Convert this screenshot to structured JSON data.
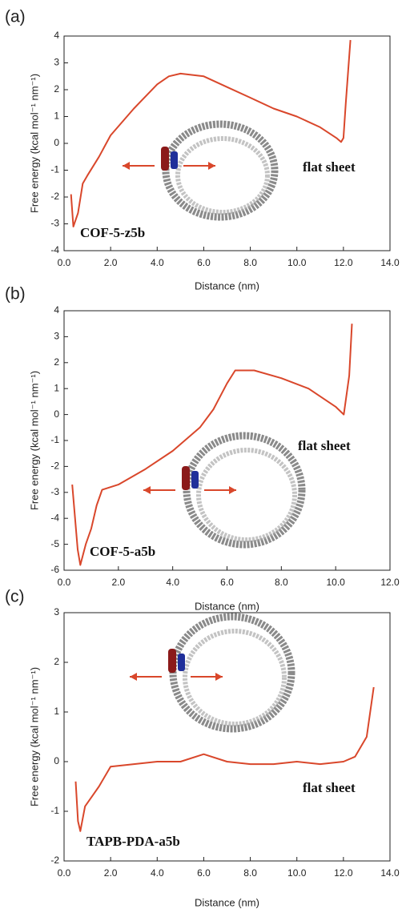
{
  "chart_data": [
    {
      "type": "line",
      "panel_label": "(a)",
      "xlabel": "Distance (nm)",
      "ylabel": "Free energy (kcal mol⁻¹ nm⁻¹)",
      "annotations": [
        "COF-5-z5b",
        "flat sheet"
      ],
      "color": "#d9472b",
      "x": [
        0.3,
        0.4,
        0.6,
        0.8,
        1.0,
        1.5,
        2.0,
        3.0,
        4.0,
        4.5,
        5.0,
        6.0,
        7.0,
        8.0,
        9.0,
        10.0,
        11.0,
        11.7,
        11.9,
        12.0,
        12.1,
        12.3
      ],
      "values": [
        -1.9,
        -3.1,
        -2.6,
        -1.5,
        -1.2,
        -0.5,
        0.3,
        1.3,
        2.2,
        2.5,
        2.6,
        2.5,
        2.1,
        1.7,
        1.3,
        1.0,
        0.6,
        0.2,
        0.05,
        0.2,
        1.5,
        3.85
      ],
      "xlim": [
        0,
        14
      ],
      "ylim": [
        -4,
        4
      ],
      "xticks": [
        {
          "value": 0,
          "label": "0.0"
        },
        {
          "value": 2,
          "label": "2.0"
        },
        {
          "value": 4,
          "label": "4.0"
        },
        {
          "value": 6,
          "label": "6.0"
        },
        {
          "value": 8,
          "label": "8.0"
        },
        {
          "value": 10,
          "label": "10.0"
        },
        {
          "value": 12,
          "label": "12.0"
        },
        {
          "value": 14,
          "label": "14.0"
        }
      ],
      "yticks": [
        -4,
        -3,
        -2,
        -1,
        0,
        1,
        2,
        3,
        4
      ],
      "grid": false
    },
    {
      "type": "line",
      "panel_label": "(b)",
      "xlabel": "Distance (nm)",
      "ylabel": "Free energy (kcal mol⁻¹ nm⁻¹)",
      "annotations": [
        "COF-5-a5b",
        "flat sheet"
      ],
      "color": "#d9472b",
      "x": [
        0.3,
        0.5,
        0.6,
        0.8,
        1.0,
        1.2,
        1.4,
        2.0,
        3.0,
        4.0,
        5.0,
        5.5,
        6.0,
        6.3,
        7.0,
        8.0,
        9.0,
        10.0,
        10.3,
        10.5,
        10.6
      ],
      "values": [
        -2.7,
        -5.2,
        -5.8,
        -5.0,
        -4.4,
        -3.5,
        -2.9,
        -2.7,
        -2.1,
        -1.4,
        -0.5,
        0.2,
        1.2,
        1.7,
        1.7,
        1.4,
        1.0,
        0.3,
        0.0,
        1.5,
        3.5
      ],
      "xlim": [
        0,
        12
      ],
      "ylim": [
        -6,
        4
      ],
      "xticks": [
        {
          "value": 0,
          "label": "0.0"
        },
        {
          "value": 2,
          "label": "2.0"
        },
        {
          "value": 4,
          "label": "4.0"
        },
        {
          "value": 6,
          "label": "6.0"
        },
        {
          "value": 8,
          "label": "8.0"
        },
        {
          "value": 10,
          "label": "10.0"
        },
        {
          "value": 12,
          "label": "12.0"
        }
      ],
      "yticks": [
        -6,
        -5,
        -4,
        -3,
        -2,
        -1,
        0,
        1,
        2,
        3,
        4
      ],
      "grid": false
    },
    {
      "type": "line",
      "panel_label": "(c)",
      "xlabel": "Distance (nm)",
      "ylabel": "Free energy (kcal mol⁻¹ nm⁻¹)",
      "annotations": [
        "TAPB-PDA-a5b",
        "flat sheet"
      ],
      "color": "#d9472b",
      "x": [
        0.5,
        0.6,
        0.7,
        0.9,
        1.2,
        1.5,
        2.0,
        3.0,
        4.0,
        5.0,
        6.0,
        7.0,
        8.0,
        9.0,
        10.0,
        11.0,
        12.0,
        12.5,
        13.0,
        13.3
      ],
      "values": [
        -0.4,
        -1.2,
        -1.4,
        -0.9,
        -0.7,
        -0.5,
        -0.1,
        -0.05,
        0.0,
        0.0,
        0.15,
        0.0,
        -0.05,
        -0.05,
        0.0,
        -0.05,
        0.0,
        0.1,
        0.5,
        1.5
      ],
      "xlim": [
        0,
        14
      ],
      "ylim": [
        -2,
        3
      ],
      "xticks": [
        {
          "value": 0,
          "label": "0.0"
        },
        {
          "value": 2,
          "label": "2.0"
        },
        {
          "value": 4,
          "label": "4.0"
        },
        {
          "value": 6,
          "label": "6.0"
        },
        {
          "value": 8,
          "label": "8.0"
        },
        {
          "value": 10,
          "label": "10.0"
        },
        {
          "value": 12,
          "label": "12.0"
        },
        {
          "value": 14,
          "label": "14.0"
        }
      ],
      "yticks": [
        -2,
        -1,
        0,
        1,
        2,
        3
      ],
      "grid": false
    }
  ]
}
